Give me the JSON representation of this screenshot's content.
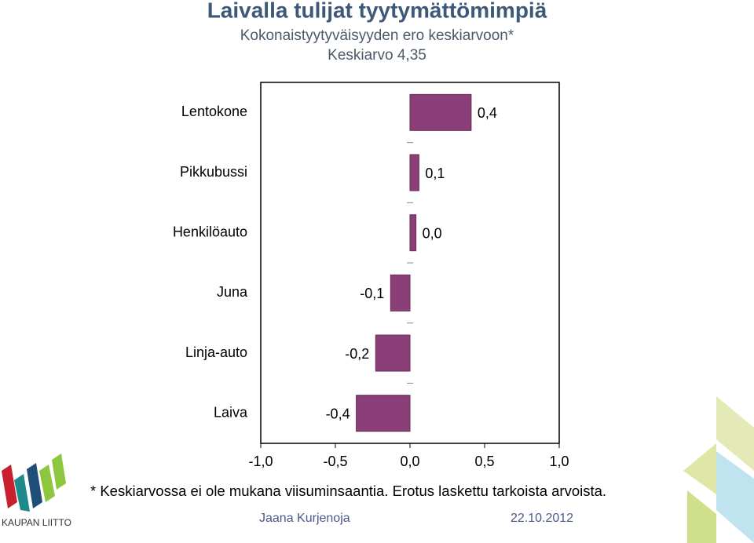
{
  "chart_data": {
    "type": "bar",
    "orientation": "horizontal",
    "title": "Laivalla tulijat tyytymättömimpiä",
    "subtitle": [
      "Kokonaistyytyväisyyden ero keskiarvoon*",
      "Keskiarvo 4,35"
    ],
    "categories": [
      "Lentokone",
      "Pikkubussi",
      "Henkilöauto",
      "Juna",
      "Linja-auto",
      "Laiva"
    ],
    "values": [
      0.41,
      0.06,
      0.04,
      -0.13,
      -0.23,
      -0.36
    ],
    "value_labels": [
      "0,4",
      "0,1",
      "0,0",
      "-0,1",
      "-0,2",
      "-0,4"
    ],
    "color": "#8b3f78",
    "xlim": [
      -1,
      1
    ],
    "xticks": [
      {
        "value": -1,
        "label": "-1,0"
      },
      {
        "value": -0.5,
        "label": "-0,5"
      },
      {
        "value": 0,
        "label": "0,0"
      },
      {
        "value": 0.5,
        "label": "0,5"
      },
      {
        "value": 1,
        "label": "1,0"
      }
    ],
    "footnote": "* Keskiarvossa ei ole mukana viisuminsaantia. Erotus laskettu tarkoista arvoista."
  },
  "footer": {
    "author": "Jaana Kurjenoja",
    "date": "22.10.2012",
    "logo": "KAUPAN LIITTO"
  }
}
